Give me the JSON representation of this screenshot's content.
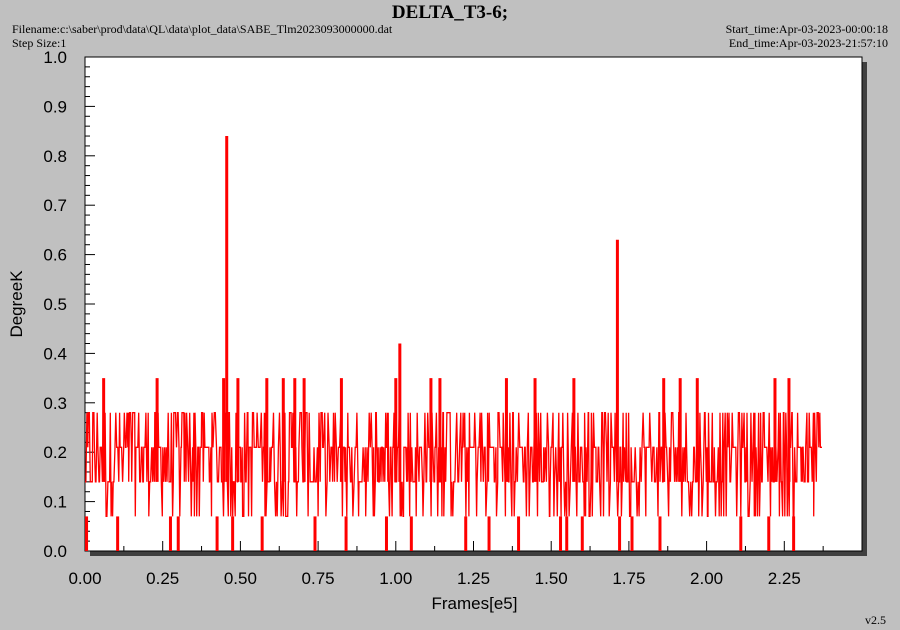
{
  "header": {
    "title": "DELTA_T3-6;",
    "filename": "Filename:c:\\saber\\prod\\data\\QL\\data\\plot_data\\SABE_Tlm2023093000000.dat",
    "step_size": "Step Size:1",
    "start_time": "Start_time:Apr-03-2023-00:00:18",
    "end_time": "End_time:Apr-03-2023-21:57:10",
    "version": "v2.5"
  },
  "colors": {
    "background": "#c0c0c0",
    "plot_bg": "#ffffff",
    "series": "#ff0000",
    "shadow": "#404040"
  },
  "chart_data": {
    "type": "line",
    "title": "DELTA_T3-6;",
    "xlabel": "Frames[e5]",
    "ylabel": "DegreeK",
    "xlim": [
      0.0,
      2.5
    ],
    "ylim": [
      0.0,
      1.0
    ],
    "x_ticks": [
      "0.00",
      "0.25",
      "0.50",
      "0.75",
      "1.00",
      "1.25",
      "1.50",
      "1.75",
      "2.00",
      "2.25"
    ],
    "y_ticks": [
      "0.0",
      "0.1",
      "0.2",
      "0.3",
      "0.4",
      "0.5",
      "0.6",
      "0.7",
      "0.8",
      "0.9",
      "1.0"
    ],
    "grid": false,
    "series": [
      {
        "color": "#ff0000",
        "x_range": [
          0.0,
          2.37
        ],
        "band_levels": [
          0.07,
          0.14,
          0.21,
          0.28
        ],
        "spikes": [
          {
            "x": 0.06,
            "y": 0.35
          },
          {
            "x": 0.232,
            "y": 0.35
          },
          {
            "x": 0.446,
            "y": 0.35
          },
          {
            "x": 0.456,
            "y": 0.84
          },
          {
            "x": 0.492,
            "y": 0.35
          },
          {
            "x": 0.585,
            "y": 0.35
          },
          {
            "x": 0.638,
            "y": 0.35
          },
          {
            "x": 0.675,
            "y": 0.35
          },
          {
            "x": 0.705,
            "y": 0.35
          },
          {
            "x": 0.825,
            "y": 0.35
          },
          {
            "x": 1.0,
            "y": 0.35
          },
          {
            "x": 1.013,
            "y": 0.42
          },
          {
            "x": 1.113,
            "y": 0.35
          },
          {
            "x": 1.142,
            "y": 0.35
          },
          {
            "x": 1.356,
            "y": 0.35
          },
          {
            "x": 1.448,
            "y": 0.35
          },
          {
            "x": 1.573,
            "y": 0.35
          },
          {
            "x": 1.713,
            "y": 0.63
          },
          {
            "x": 1.862,
            "y": 0.35
          },
          {
            "x": 1.915,
            "y": 0.35
          },
          {
            "x": 1.97,
            "y": 0.35
          },
          {
            "x": 2.22,
            "y": 0.35
          },
          {
            "x": 2.265,
            "y": 0.35
          }
        ],
        "dips": [
          0.005,
          0.105,
          0.275,
          0.3,
          0.425,
          0.475,
          0.57,
          0.74,
          0.84,
          0.97,
          1.05,
          1.225,
          1.3,
          1.395,
          1.53,
          1.55,
          1.6,
          1.72,
          1.76,
          1.85,
          2.11,
          2.2,
          2.28
        ]
      }
    ]
  }
}
